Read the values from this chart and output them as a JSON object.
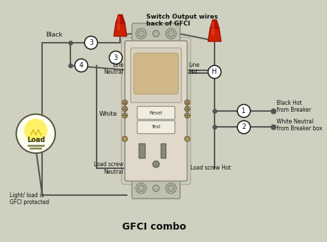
{
  "title": "GFCI combo",
  "bg_color": "#d0d0c0",
  "device_color": "#e8e0d0",
  "device_border": "#999988",
  "wire_dark": "#555555",
  "wire_gray": "#999999",
  "red_connector": "#cc1100",
  "switch_output_label": "Switch Output wires\nback of GFCI",
  "label_black": "Black",
  "label_white": "White",
  "label_load": "Load",
  "label_light_protected": "Light/ load is\nGFCI protected",
  "label_line_neutral": "Line\nNeutral",
  "label_line_hot": "Line\nHot",
  "label_load_screw_neutral": "Load screw\nNeutral",
  "label_load_screw_hot": "Load screw Hot",
  "label_black_hot": "Black Hot\nfrom Breaker",
  "label_white_neutral": "White Neutral\nfrom Breaker box",
  "label_reset": "Reset",
  "label_test": "Test",
  "title_fontsize": 10,
  "label_fontsize": 6.5,
  "small_fontsize": 5.5
}
